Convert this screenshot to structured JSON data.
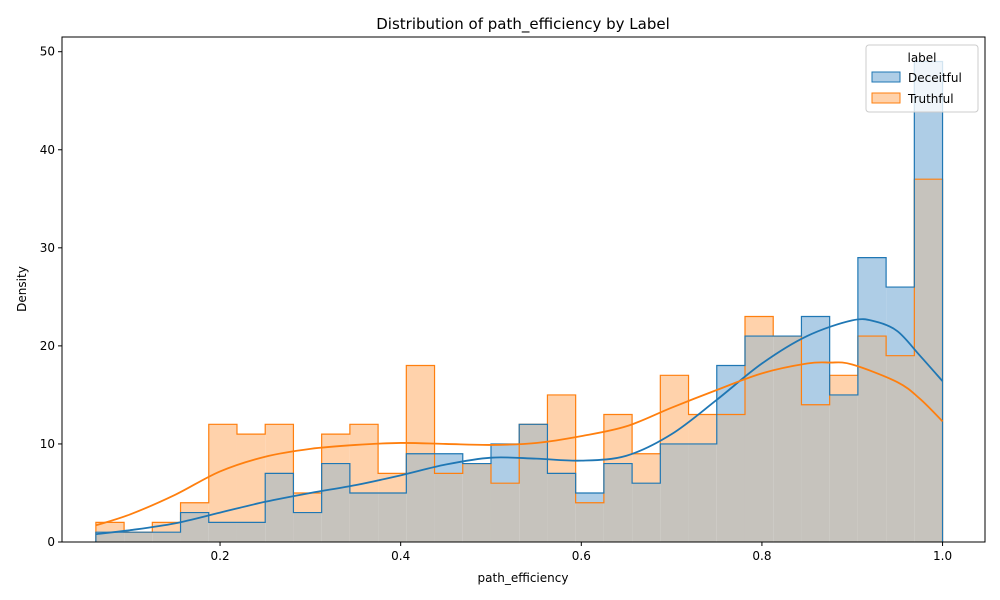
{
  "chart_data": {
    "type": "histogram",
    "title": "Distribution of path_efficiency by Label",
    "xlabel": "path_efficiency",
    "ylabel": "Density",
    "xlim": [
      0.025,
      1.047
    ],
    "ylim": [
      0,
      51.5
    ],
    "xticks": [
      0.2,
      0.4,
      0.6,
      0.8,
      1.0
    ],
    "xtick_labels": [
      "0.2",
      "0.4",
      "0.6",
      "0.8",
      "1.0"
    ],
    "yticks": [
      0,
      10,
      20,
      30,
      40,
      50
    ],
    "ytick_labels": [
      "0",
      "10",
      "20",
      "30",
      "40",
      "50"
    ],
    "bin_start": 0.0625,
    "bin_width": 0.03125,
    "legend": {
      "title": "label",
      "position": "top-right"
    },
    "series": [
      {
        "name": "Deceitful",
        "color": "#1f77b4",
        "fill": "#aecde6",
        "counts": [
          1,
          1,
          1,
          3,
          2,
          2,
          7,
          3,
          8,
          5,
          5,
          9,
          9,
          8,
          10,
          12,
          7,
          5,
          8,
          6,
          10,
          10,
          18,
          21,
          21,
          23,
          15,
          29,
          26,
          49
        ],
        "kde": [
          [
            0.0625,
            0.8
          ],
          [
            0.1,
            1.2
          ],
          [
            0.15,
            1.9
          ],
          [
            0.2,
            3.0
          ],
          [
            0.25,
            4.1
          ],
          [
            0.3,
            5.0
          ],
          [
            0.35,
            5.8
          ],
          [
            0.4,
            6.8
          ],
          [
            0.45,
            7.9
          ],
          [
            0.5,
            8.6
          ],
          [
            0.55,
            8.5
          ],
          [
            0.6,
            8.3
          ],
          [
            0.65,
            8.8
          ],
          [
            0.7,
            11.0
          ],
          [
            0.75,
            14.5
          ],
          [
            0.8,
            18.2
          ],
          [
            0.85,
            21.0
          ],
          [
            0.9,
            22.6
          ],
          [
            0.925,
            22.5
          ],
          [
            0.95,
            21.5
          ],
          [
            0.975,
            19.0
          ],
          [
            1.0,
            16.4
          ]
        ]
      },
      {
        "name": "Truthful",
        "color": "#ff7f0e",
        "fill": "#ffd2ab",
        "counts": [
          2,
          1,
          2,
          4,
          12,
          11,
          12,
          5,
          11,
          12,
          7,
          18,
          7,
          8,
          6,
          12,
          15,
          4,
          13,
          9,
          17,
          13,
          13,
          23,
          21,
          14,
          17,
          21,
          19,
          37
        ],
        "kde": [
          [
            0.0625,
            1.7
          ],
          [
            0.1,
            2.8
          ],
          [
            0.15,
            4.8
          ],
          [
            0.2,
            7.2
          ],
          [
            0.25,
            8.7
          ],
          [
            0.3,
            9.5
          ],
          [
            0.35,
            9.9
          ],
          [
            0.4,
            10.1
          ],
          [
            0.45,
            10.0
          ],
          [
            0.5,
            9.9
          ],
          [
            0.55,
            10.1
          ],
          [
            0.6,
            10.8
          ],
          [
            0.65,
            11.8
          ],
          [
            0.7,
            13.7
          ],
          [
            0.75,
            15.5
          ],
          [
            0.8,
            17.2
          ],
          [
            0.85,
            18.2
          ],
          [
            0.875,
            18.3
          ],
          [
            0.9,
            18.1
          ],
          [
            0.95,
            16.3
          ],
          [
            0.975,
            14.6
          ],
          [
            1.0,
            12.3
          ]
        ]
      }
    ]
  }
}
